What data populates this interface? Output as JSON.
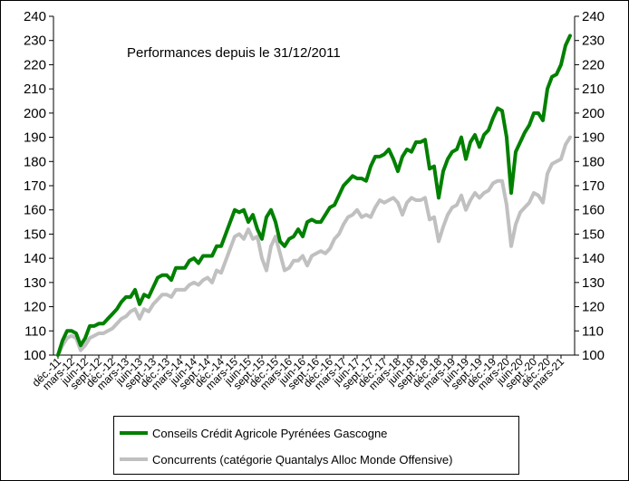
{
  "chart_data": {
    "type": "line",
    "title": "Performances depuis le 31/12/2011",
    "ylim": [
      100,
      240
    ],
    "yticks": [
      100,
      110,
      120,
      130,
      140,
      150,
      160,
      170,
      180,
      190,
      200,
      210,
      220,
      230,
      240
    ],
    "y_axis_both_sides": true,
    "grid": false,
    "legend_position": "bottom",
    "x_tick_labels": [
      "déc.-11",
      "mars-12",
      "juin-12",
      "sept.-12",
      "déc.-12",
      "mars-13",
      "juin-13",
      "sept.-13",
      "déc.-13",
      "mars-14",
      "juin-14",
      "sept.-14",
      "déc.-14",
      "mars-15",
      "juin-15",
      "sept.-15",
      "déc.-15",
      "mars-16",
      "juin-16",
      "sept.-16",
      "déc.-16",
      "mars-17",
      "juin-17",
      "sept.-17",
      "déc.-17",
      "mars-18",
      "juin-18",
      "sept.-18",
      "déc.-18",
      "mars-19",
      "juin-19",
      "sept.-19",
      "déc.-19",
      "mars-20",
      "juin-20",
      "sept.-20",
      "déc.-20",
      "mars-21"
    ],
    "series": [
      {
        "name": "Conseils Crédit Agricole Pyrénées Gascogne",
        "color": "#008000",
        "values": [
          100,
          106,
          110,
          110,
          109,
          104,
          107,
          112,
          112,
          113,
          113,
          115,
          117,
          119,
          122,
          124,
          124,
          127,
          121,
          125,
          124,
          128,
          132,
          133,
          133,
          131,
          136,
          136,
          136,
          139,
          140,
          138,
          141,
          141,
          141,
          145,
          145,
          150,
          155,
          160,
          159,
          160,
          155,
          158,
          152,
          148,
          157,
          160,
          155,
          147,
          145,
          148,
          149,
          152,
          149,
          155,
          156,
          155,
          155,
          158,
          161,
          162,
          166,
          170,
          172,
          174,
          173,
          173,
          172,
          178,
          182,
          182,
          183,
          185,
          181,
          176,
          182,
          185,
          184,
          188,
          188,
          189,
          177,
          178,
          165,
          176,
          181,
          184,
          185,
          190,
          181,
          188,
          191,
          186,
          191,
          193,
          198,
          202,
          201,
          190,
          167,
          184,
          188,
          192,
          195,
          200,
          200,
          197,
          210,
          215,
          216,
          220,
          228,
          232
        ]
      },
      {
        "name": "Concurrents (catégorie Quantalys Alloc Monde Offensive)",
        "color": "#c0c0c0",
        "values": [
          100,
          104,
          107,
          108,
          107,
          102,
          104,
          107,
          108,
          109,
          109,
          110,
          111,
          113,
          115,
          116,
          118,
          119,
          115,
          119,
          118,
          121,
          123,
          125,
          125,
          124,
          127,
          127,
          127,
          129,
          130,
          129,
          131,
          132,
          130,
          135,
          134,
          139,
          144,
          149,
          150,
          148,
          152,
          148,
          149,
          140,
          135,
          145,
          149,
          142,
          135,
          136,
          139,
          139,
          141,
          137,
          141,
          142,
          143,
          142,
          144,
          148,
          150,
          154,
          157,
          158,
          160,
          157,
          158,
          157,
          161,
          164,
          163,
          164,
          165,
          163,
          158,
          163,
          165,
          164,
          164,
          165,
          156,
          157,
          147,
          153,
          158,
          161,
          162,
          166,
          160,
          164,
          167,
          165,
          167,
          168,
          171,
          172,
          172,
          162,
          145,
          154,
          159,
          161,
          163,
          167,
          166,
          163,
          175,
          179,
          180,
          181,
          187,
          190
        ]
      }
    ]
  }
}
